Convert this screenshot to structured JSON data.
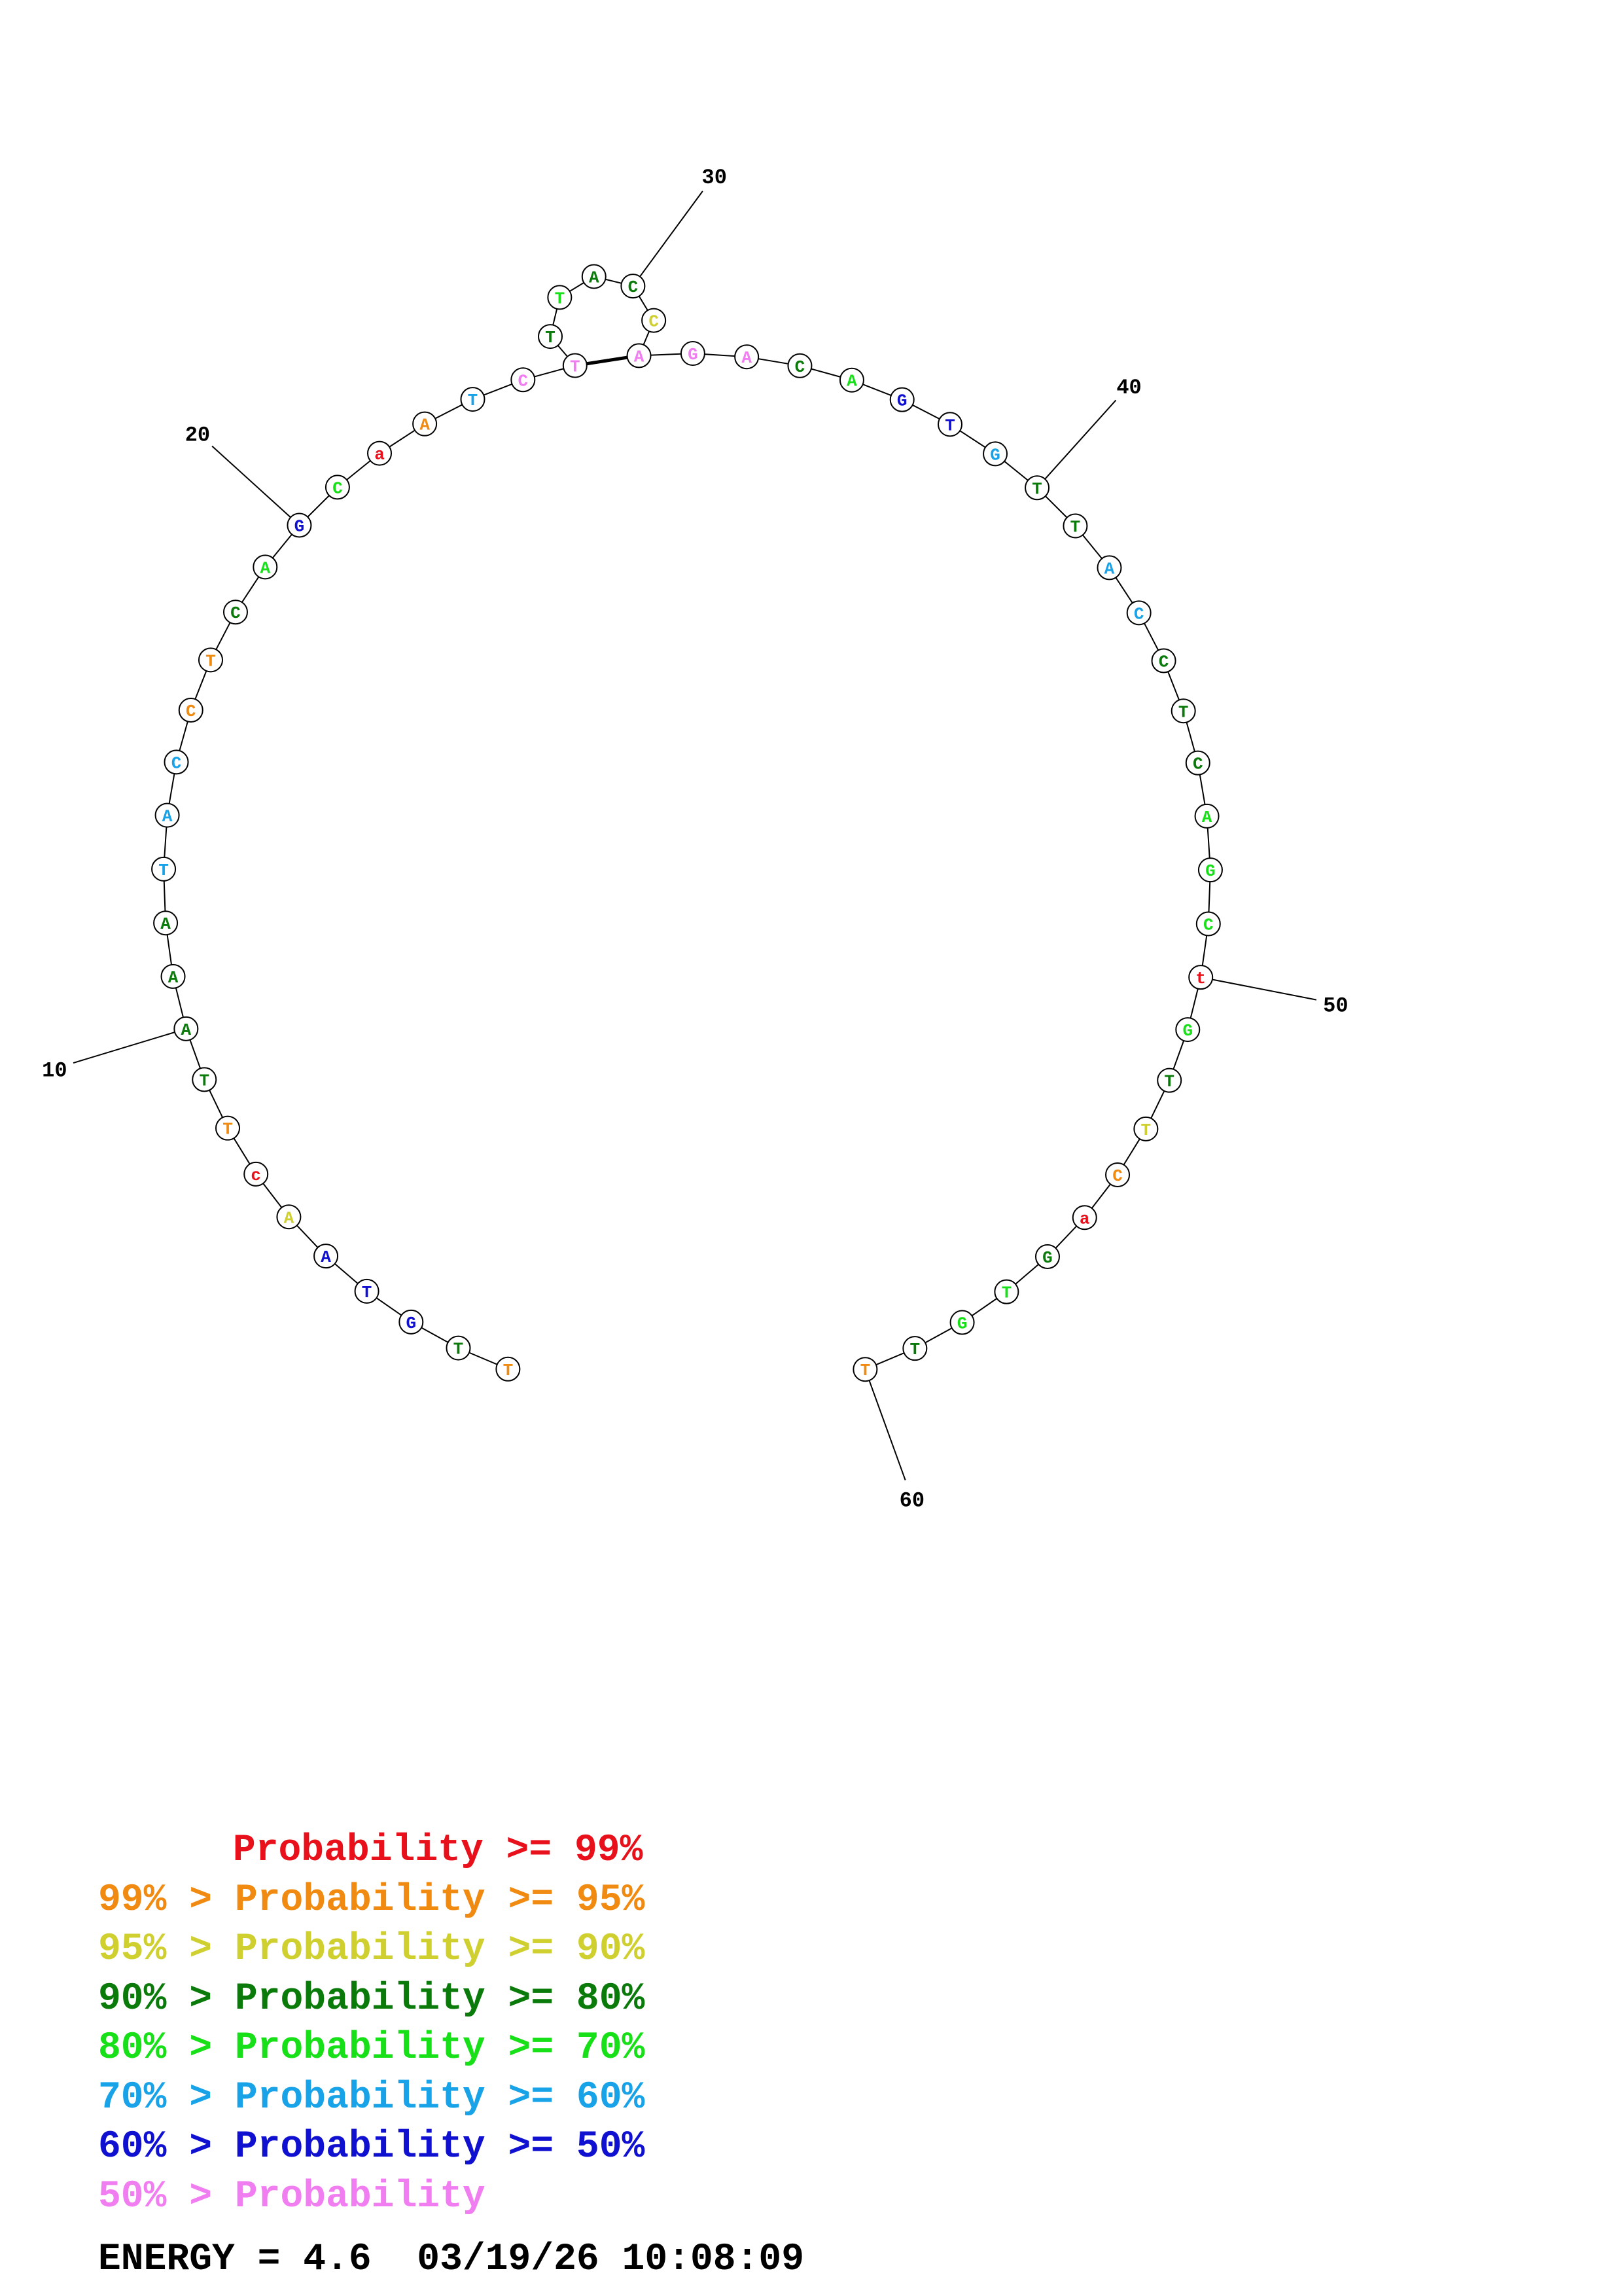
{
  "structure": {
    "nucleotides": [
      {
        "n": 1,
        "base": "T",
        "class": 2
      },
      {
        "n": 2,
        "base": "T",
        "class": 4
      },
      {
        "n": 3,
        "base": "G",
        "class": 7
      },
      {
        "n": 4,
        "base": "T",
        "class": 7
      },
      {
        "n": 5,
        "base": "A",
        "class": 7
      },
      {
        "n": 6,
        "base": "A",
        "class": 3
      },
      {
        "n": 7,
        "base": "c",
        "class": 1
      },
      {
        "n": 8,
        "base": "T",
        "class": 2
      },
      {
        "n": 9,
        "base": "T",
        "class": 4
      },
      {
        "n": 10,
        "base": "A",
        "class": 4
      },
      {
        "n": 11,
        "base": "A",
        "class": 4
      },
      {
        "n": 12,
        "base": "A",
        "class": 4
      },
      {
        "n": 13,
        "base": "T",
        "class": 6
      },
      {
        "n": 14,
        "base": "A",
        "class": 6
      },
      {
        "n": 15,
        "base": "C",
        "class": 6
      },
      {
        "n": 16,
        "base": "C",
        "class": 2
      },
      {
        "n": 17,
        "base": "T",
        "class": 2
      },
      {
        "n": 18,
        "base": "C",
        "class": 4
      },
      {
        "n": 19,
        "base": "A",
        "class": 5
      },
      {
        "n": 20,
        "base": "G",
        "class": 7
      },
      {
        "n": 21,
        "base": "C",
        "class": 5
      },
      {
        "n": 22,
        "base": "a",
        "class": 1
      },
      {
        "n": 23,
        "base": "A",
        "class": 2
      },
      {
        "n": 24,
        "base": "T",
        "class": 6
      },
      {
        "n": 25,
        "base": "C",
        "class": 8
      },
      {
        "n": 26,
        "base": "T",
        "class": 8
      },
      {
        "n": 27,
        "base": "T",
        "class": 4
      },
      {
        "n": 28,
        "base": "T",
        "class": 5
      },
      {
        "n": 29,
        "base": "A",
        "class": 4
      },
      {
        "n": 30,
        "base": "C",
        "class": 4
      },
      {
        "n": 31,
        "base": "C",
        "class": 3
      },
      {
        "n": 32,
        "base": "A",
        "class": 8
      },
      {
        "n": 33,
        "base": "G",
        "class": 8
      },
      {
        "n": 34,
        "base": "A",
        "class": 8
      },
      {
        "n": 35,
        "base": "C",
        "class": 4
      },
      {
        "n": 36,
        "base": "A",
        "class": 5
      },
      {
        "n": 37,
        "base": "G",
        "class": 7
      },
      {
        "n": 38,
        "base": "T",
        "class": 7
      },
      {
        "n": 39,
        "base": "G",
        "class": 6
      },
      {
        "n": 40,
        "base": "T",
        "class": 4
      },
      {
        "n": 41,
        "base": "T",
        "class": 4
      },
      {
        "n": 42,
        "base": "A",
        "class": 6
      },
      {
        "n": 43,
        "base": "C",
        "class": 6
      },
      {
        "n": 44,
        "base": "C",
        "class": 4
      },
      {
        "n": 45,
        "base": "T",
        "class": 4
      },
      {
        "n": 46,
        "base": "C",
        "class": 4
      },
      {
        "n": 47,
        "base": "A",
        "class": 5
      },
      {
        "n": 48,
        "base": "G",
        "class": 5
      },
      {
        "n": 49,
        "base": "C",
        "class": 5
      },
      {
        "n": 50,
        "base": "t",
        "class": 1
      },
      {
        "n": 51,
        "base": "G",
        "class": 5
      },
      {
        "n": 52,
        "base": "T",
        "class": 4
      },
      {
        "n": 53,
        "base": "T",
        "class": 3
      },
      {
        "n": 54,
        "base": "C",
        "class": 2
      },
      {
        "n": 55,
        "base": "a",
        "class": 1
      },
      {
        "n": 56,
        "base": "G",
        "class": 4
      },
      {
        "n": 57,
        "base": "T",
        "class": 5
      },
      {
        "n": 58,
        "base": "G",
        "class": 5
      },
      {
        "n": 59,
        "base": "T",
        "class": 4
      },
      {
        "n": 60,
        "base": "T",
        "class": 2
      }
    ],
    "pairs": [
      [
        26,
        32
      ]
    ],
    "index_labels": [
      {
        "n": 10,
        "label": "10"
      },
      {
        "n": 20,
        "label": "20"
      },
      {
        "n": 30,
        "label": "30"
      },
      {
        "n": 40,
        "label": "40"
      },
      {
        "n": 50,
        "label": "50"
      },
      {
        "n": 60,
        "label": "60"
      }
    ]
  },
  "class_colors": {
    "1": "#e8101a",
    "2": "#f08a10",
    "3": "#cfd030",
    "4": "#0a7a0a",
    "5": "#18e018",
    "6": "#18a2e8",
    "7": "#1010d0",
    "8": "#f07ef0"
  },
  "legend": [
    {
      "prefix": "",
      "text": "Probability >= 99%",
      "color": "#e8101a"
    },
    {
      "prefix": "99% > ",
      "text": "Probability >= 95%",
      "color": "#f08a10"
    },
    {
      "prefix": "95% > ",
      "text": "Probability >= 90%",
      "color": "#cfd030"
    },
    {
      "prefix": "90% > ",
      "text": "Probability >= 80%",
      "color": "#0a7a0a"
    },
    {
      "prefix": "80% > ",
      "text": "Probability >= 70%",
      "color": "#18e018"
    },
    {
      "prefix": "70% > ",
      "text": "Probability >= 60%",
      "color": "#18a2e8"
    },
    {
      "prefix": "60% > ",
      "text": "Probability >= 50%",
      "color": "#1010d0"
    },
    {
      "prefix": "50% > ",
      "text": "Probability",
      "color": "#f07ef0"
    }
  ],
  "footer": {
    "energy_text": "ENERGY = 4.6",
    "timestamp": "03/19/26 10:08:09"
  }
}
